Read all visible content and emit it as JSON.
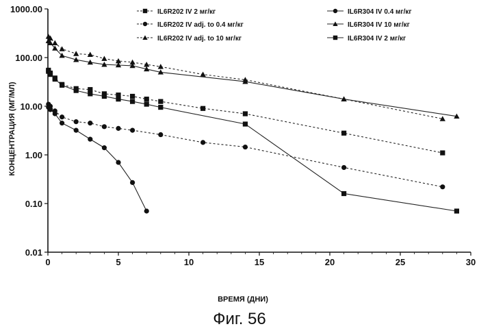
{
  "figure": {
    "caption": "Фиг. 56"
  },
  "chart_data": {
    "type": "scatter",
    "xlabel": "ВРЕМЯ (ДНИ)",
    "ylabel": "КОНЦЕНТРАЦИЯ (МГ/МЛ)",
    "xlim": [
      0,
      30
    ],
    "ylim": [
      0.01,
      1000
    ],
    "y_scale": "log",
    "x_ticks": [
      "0",
      "5",
      "10",
      "15",
      "20",
      "25",
      "30"
    ],
    "y_ticks": [
      "0.01",
      "0.10",
      "1.00",
      "10.00",
      "100.00",
      "1000.00"
    ],
    "legend_position": "top",
    "grid": false,
    "series": [
      {
        "name": "IL6R202 IV 2 мг/кг",
        "marker": "square",
        "line": "dashed",
        "x": [
          0.04,
          0.17,
          0.5,
          1,
          2,
          3,
          4,
          5,
          6,
          7,
          8,
          11,
          14,
          21,
          28
        ],
        "y": [
          55,
          45,
          38,
          28,
          23,
          22,
          18,
          17,
          16,
          14,
          12.5,
          9,
          7,
          2.8,
          1.1
        ]
      },
      {
        "name": "IL6R202 IV adj. to 0.4 мг/кг",
        "marker": "circle",
        "line": "dashed",
        "x": [
          0.04,
          0.17,
          0.5,
          1,
          2,
          3,
          4,
          5,
          6,
          8,
          11,
          14,
          21,
          28
        ],
        "y": [
          11,
          10,
          8,
          6,
          4.8,
          4.5,
          3.8,
          3.5,
          3.2,
          2.6,
          1.8,
          1.45,
          0.55,
          0.22
        ]
      },
      {
        "name": "IL6R202 IV adj. to 10 мг/кг",
        "marker": "triangle",
        "line": "dashed",
        "x": [
          0.04,
          0.17,
          0.5,
          1,
          2,
          3,
          4,
          5,
          6,
          7,
          8,
          11,
          14,
          21,
          28
        ],
        "y": [
          270,
          250,
          200,
          150,
          120,
          115,
          95,
          85,
          80,
          72,
          65,
          45,
          35,
          14,
          5.5
        ]
      },
      {
        "name": "IL6R304 IV 0.4 мг/кг",
        "marker": "circle",
        "line": "solid",
        "x": [
          0.04,
          0.17,
          0.5,
          1,
          2,
          3,
          4,
          5,
          6,
          7
        ],
        "y": [
          9.5,
          8.5,
          7,
          4.5,
          3.2,
          2.1,
          1.4,
          0.7,
          0.27,
          0.07
        ]
      },
      {
        "name": "IL6R304 IV 10 мг/кг",
        "marker": "triangle",
        "line": "solid",
        "x": [
          0.04,
          0.17,
          0.5,
          1,
          2,
          3,
          4,
          5,
          6,
          7,
          8,
          14,
          21,
          29
        ],
        "y": [
          220,
          200,
          155,
          110,
          90,
          80,
          72,
          70,
          68,
          58,
          50,
          32,
          14,
          6.2
        ]
      },
      {
        "name": "IL6R304 IV 2 мг/кг",
        "marker": "square",
        "line": "solid",
        "x": [
          0.04,
          0.17,
          0.5,
          1,
          2,
          3,
          4,
          5,
          6,
          7,
          8,
          14,
          21,
          29
        ],
        "y": [
          52,
          48,
          36,
          27,
          21,
          18,
          16,
          14,
          12.5,
          11,
          9.5,
          4.3,
          0.16,
          0.07
        ]
      }
    ]
  }
}
